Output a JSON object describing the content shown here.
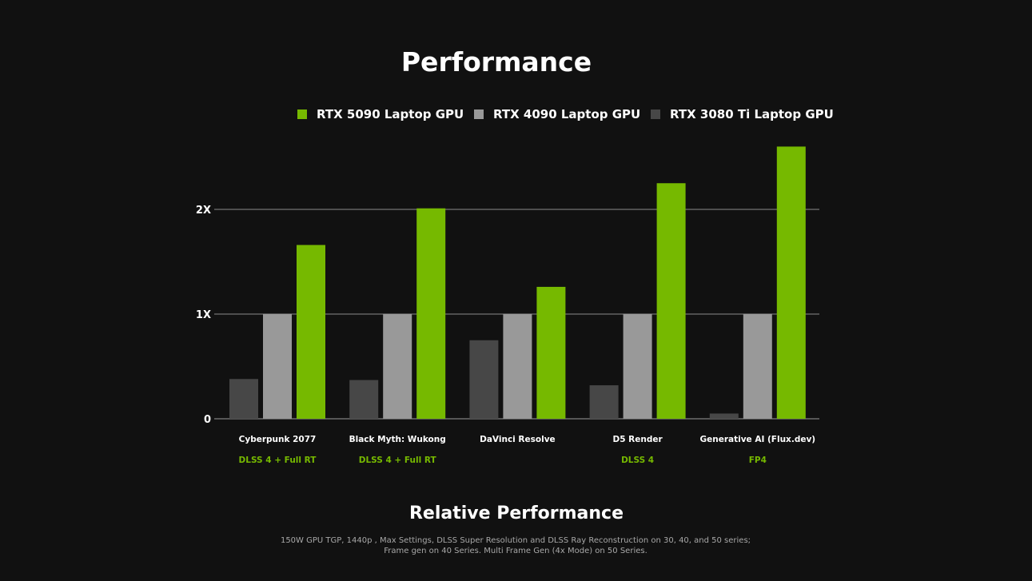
{
  "chart_data": {
    "type": "bar",
    "title": "Performance",
    "xlabel": "Relative Performance",
    "ylabel": "",
    "ylim": [
      0,
      2.6
    ],
    "yticks": [
      {
        "value": 0,
        "label": "0"
      },
      {
        "value": 1,
        "label": "1X"
      },
      {
        "value": 2,
        "label": "2X"
      }
    ],
    "grid": true,
    "legend_position": "top-right",
    "categories": [
      {
        "name": "Cyberpunk 2077",
        "sub": "DLSS 4 + Full RT"
      },
      {
        "name": "Black Myth: Wukong",
        "sub": "DLSS 4 + Full RT"
      },
      {
        "name": "DaVinci Resolve",
        "sub": ""
      },
      {
        "name": "D5 Render",
        "sub": "DLSS 4"
      },
      {
        "name": "Generative AI (Flux.dev)",
        "sub": "FP4"
      }
    ],
    "series": [
      {
        "name": "RTX 3080 Ti Laptop GPU",
        "color": "#474747",
        "values": [
          0.38,
          0.37,
          0.75,
          0.32,
          0.05
        ]
      },
      {
        "name": "RTX 4090 Laptop GPU",
        "color": "#999999",
        "values": [
          1.0,
          1.0,
          1.0,
          1.0,
          1.0
        ]
      },
      {
        "name": "RTX 5090 Laptop GPU",
        "color": "#76b900",
        "values": [
          1.66,
          2.01,
          1.26,
          2.25,
          2.6
        ]
      }
    ],
    "legend_order": [
      "RTX 5090 Laptop GPU",
      "RTX 4090 Laptop GPU",
      "RTX 3080 Ti Laptop GPU"
    ],
    "footnote": [
      "150W GPU TGP, 1440p , Max Settings, DLSS Super Resolution and DLSS Ray Reconstruction on 30, 40, and 50 series;",
      "Frame gen on 40 Series. Multi Frame Gen (4x Mode) on 50 Series."
    ]
  },
  "colors": {
    "background": "#111111",
    "accent": "#76b900",
    "gridline": "#8a8a8a",
    "footnote": "#a8a8a8"
  }
}
